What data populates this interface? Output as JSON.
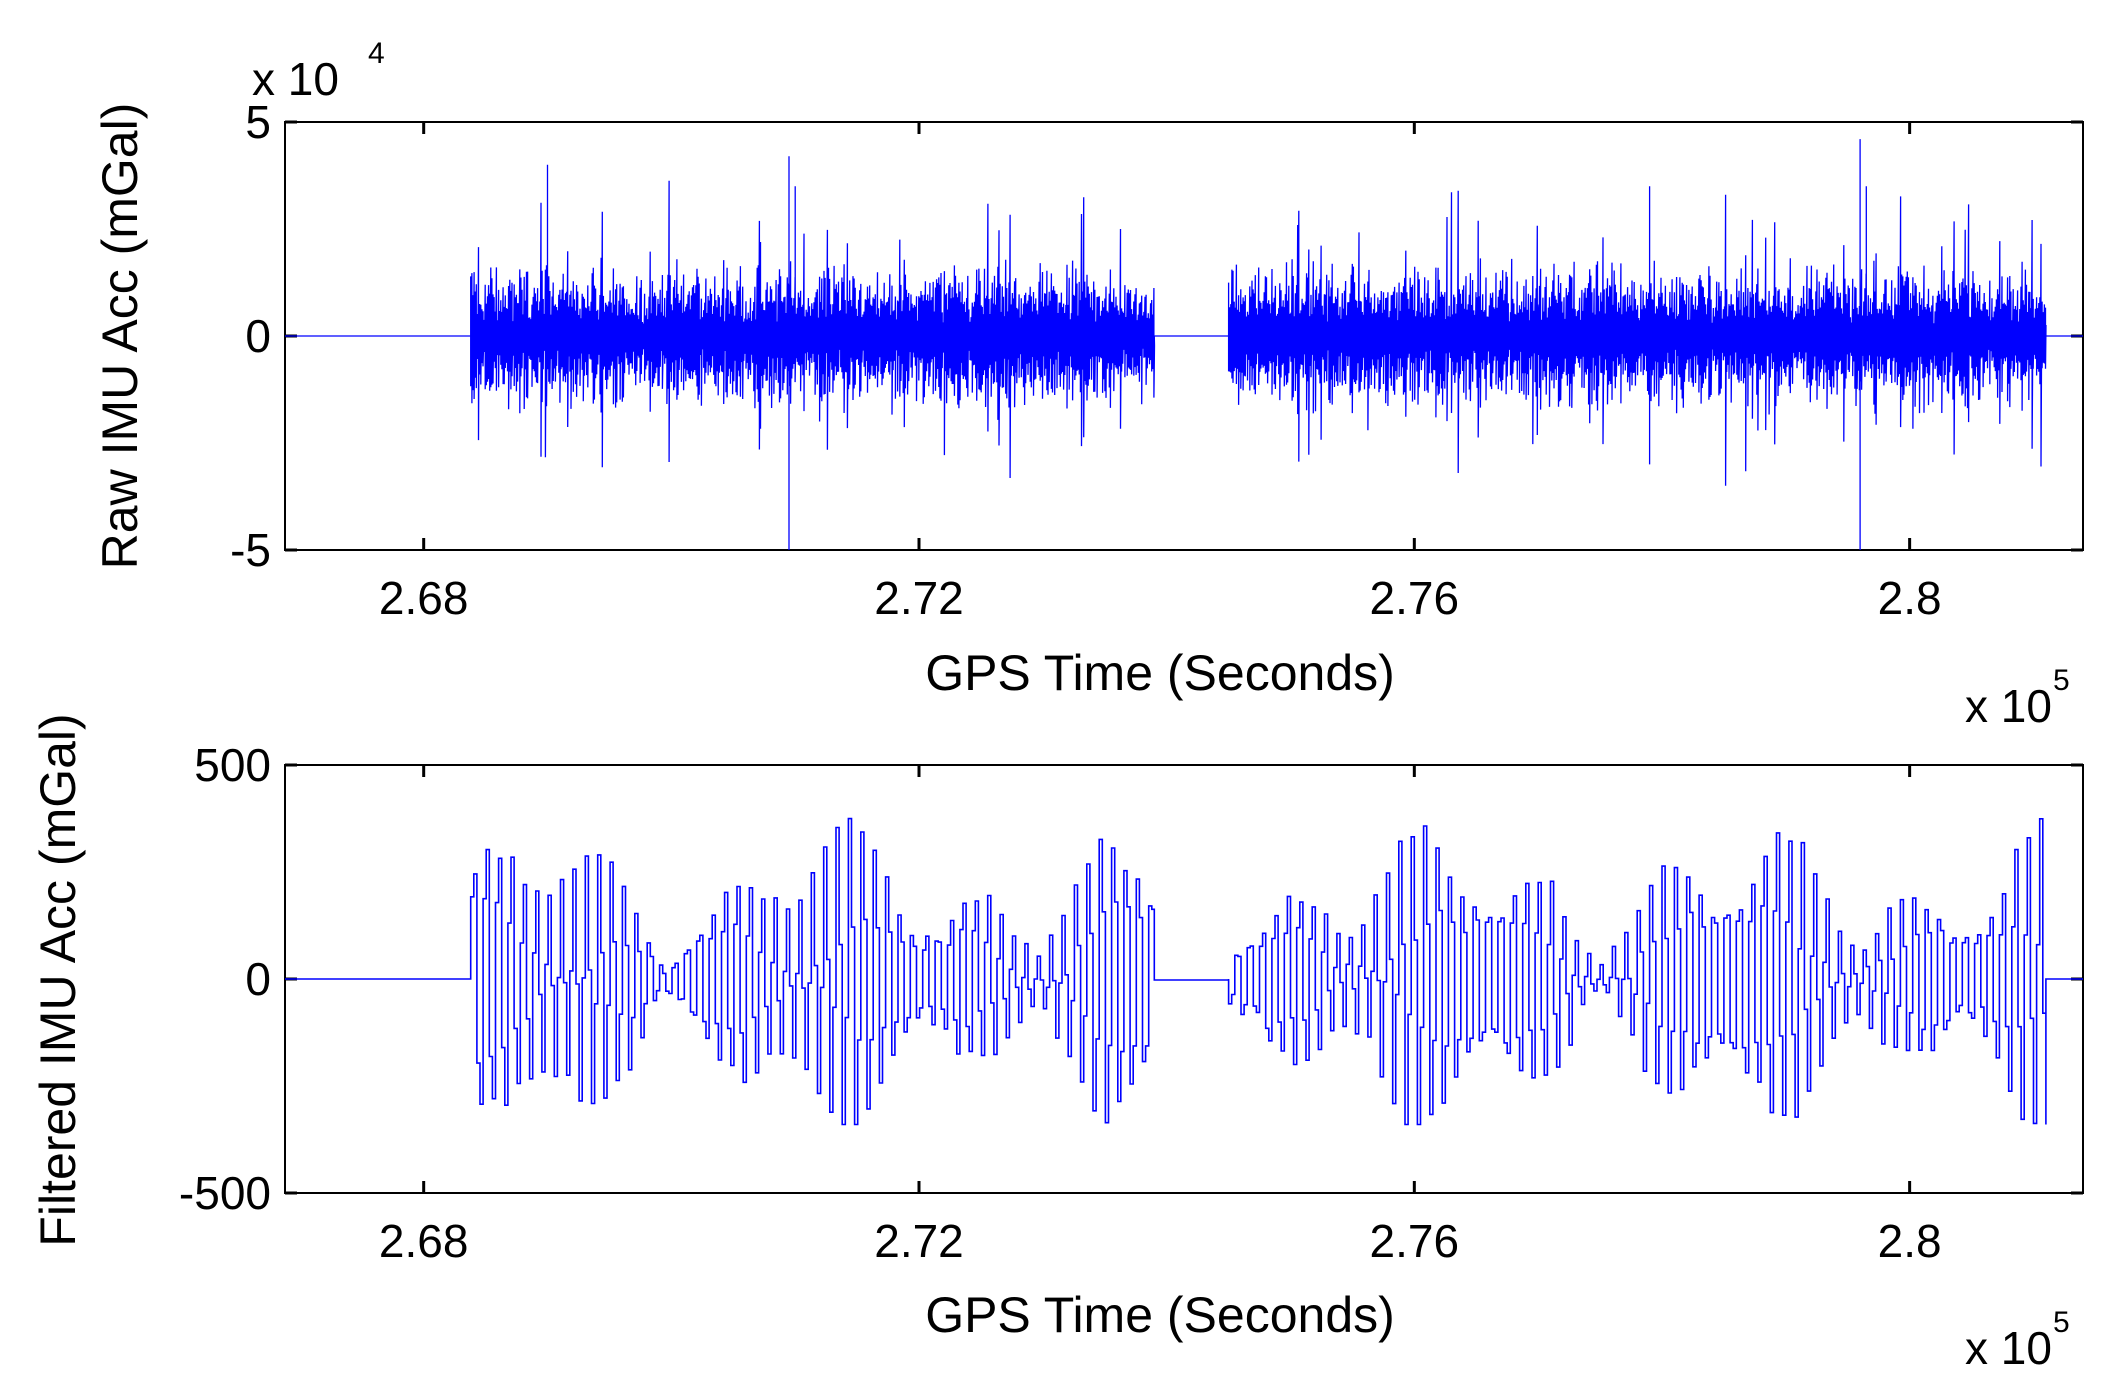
{
  "chart_data": [
    {
      "type": "line",
      "title": "",
      "xlabel": "GPS Time (Seconds)",
      "ylabel": "Raw IMU Acc (mGal)",
      "x_multiplier_label": "x 10",
      "x_multiplier_exp": "5",
      "y_multiplier_label": "x 10",
      "y_multiplier_exp": "4",
      "xlim": [
        2.6688,
        2.814
      ],
      "ylim": [
        -5,
        5
      ],
      "x_ticks": [
        2.68,
        2.72,
        2.76,
        2.8
      ],
      "x_tick_labels": [
        "2.68",
        "2.72",
        "2.76",
        "2.8"
      ],
      "y_ticks": [
        -5,
        0,
        5
      ],
      "y_tick_labels": [
        "-5",
        "0",
        "5"
      ],
      "grid": false,
      "line_color": "#0000ff",
      "segments": [
        {
          "x_start": 2.6688,
          "x_end": 2.6838,
          "amplitude": 0,
          "style": "flat"
        },
        {
          "x_start": 2.6838,
          "x_end": 2.739,
          "amplitude": 1.2,
          "style": "raw_noise"
        },
        {
          "x_start": 2.739,
          "x_end": 2.745,
          "amplitude": 0.05,
          "style": "flat"
        },
        {
          "x_start": 2.745,
          "x_end": 2.811,
          "amplitude": 1.2,
          "style": "raw_noise"
        },
        {
          "x_start": 2.811,
          "x_end": 2.814,
          "amplitude": 0,
          "style": "flat"
        }
      ],
      "spikes": [
        {
          "x": 2.69,
          "y": 4.0
        },
        {
          "x": 2.7095,
          "y": 4.2
        },
        {
          "x": 2.7095,
          "y": -5.0
        },
        {
          "x": 2.71,
          "y": 3.5
        },
        {
          "x": 2.779,
          "y": 3.5
        },
        {
          "x": 2.779,
          "y": -3.0
        },
        {
          "x": 2.796,
          "y": 4.6
        },
        {
          "x": 2.796,
          "y": -5.0
        },
        {
          "x": 2.7965,
          "y": 3.5
        }
      ]
    },
    {
      "type": "line",
      "title": "",
      "xlabel": "GPS Time (Seconds)",
      "ylabel": "Filtered IMU Acc (mGal)",
      "x_multiplier_label": "x 10",
      "x_multiplier_exp": "5",
      "xlim": [
        2.6688,
        2.814
      ],
      "ylim": [
        -500,
        500
      ],
      "x_ticks": [
        2.68,
        2.72,
        2.76,
        2.8
      ],
      "x_tick_labels": [
        "2.68",
        "2.72",
        "2.76",
        "2.8"
      ],
      "y_ticks": [
        -500,
        0,
        500
      ],
      "y_tick_labels": [
        "-500",
        "0",
        "500"
      ],
      "grid": false,
      "line_color": "#0000ff",
      "segments": [
        {
          "x_start": 2.6688,
          "x_end": 2.6838,
          "amplitude": 0,
          "style": "flat"
        },
        {
          "x_start": 2.6838,
          "x_end": 2.739,
          "amplitude": 380,
          "style": "filtered_oscillation"
        },
        {
          "x_start": 2.739,
          "x_end": 2.745,
          "amplitude": 10,
          "style": "flat"
        },
        {
          "x_start": 2.745,
          "x_end": 2.811,
          "amplitude": 380,
          "style": "filtered_oscillation"
        },
        {
          "x_start": 2.811,
          "x_end": 2.814,
          "amplitude": 0,
          "style": "flat"
        }
      ],
      "range_y": [
        -340,
        440
      ]
    }
  ]
}
